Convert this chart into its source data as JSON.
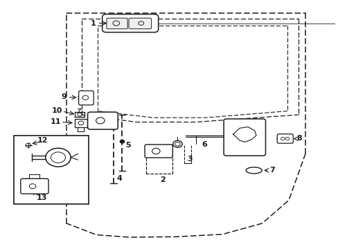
{
  "bg_color": "#ffffff",
  "line_color": "#1a1a1a",
  "fig_width": 4.89,
  "fig_height": 3.6,
  "dpi": 100,
  "door_outer": {
    "x": [
      0.185,
      0.92,
      0.92,
      0.92,
      0.7,
      0.49,
      0.33,
      0.185,
      0.185
    ],
    "y": [
      0.95,
      0.95,
      0.95,
      0.1,
      0.04,
      0.04,
      0.04,
      0.11,
      0.95
    ]
  },
  "window_outer": {
    "x": [
      0.24,
      0.89,
      0.89,
      0.51,
      0.37,
      0.24,
      0.24
    ],
    "y": [
      0.93,
      0.93,
      0.53,
      0.49,
      0.49,
      0.54,
      0.93
    ]
  },
  "window_inner": {
    "x": [
      0.29,
      0.84,
      0.84,
      0.53,
      0.4,
      0.29,
      0.29
    ],
    "y": [
      0.9,
      0.9,
      0.56,
      0.52,
      0.52,
      0.565,
      0.9
    ]
  }
}
